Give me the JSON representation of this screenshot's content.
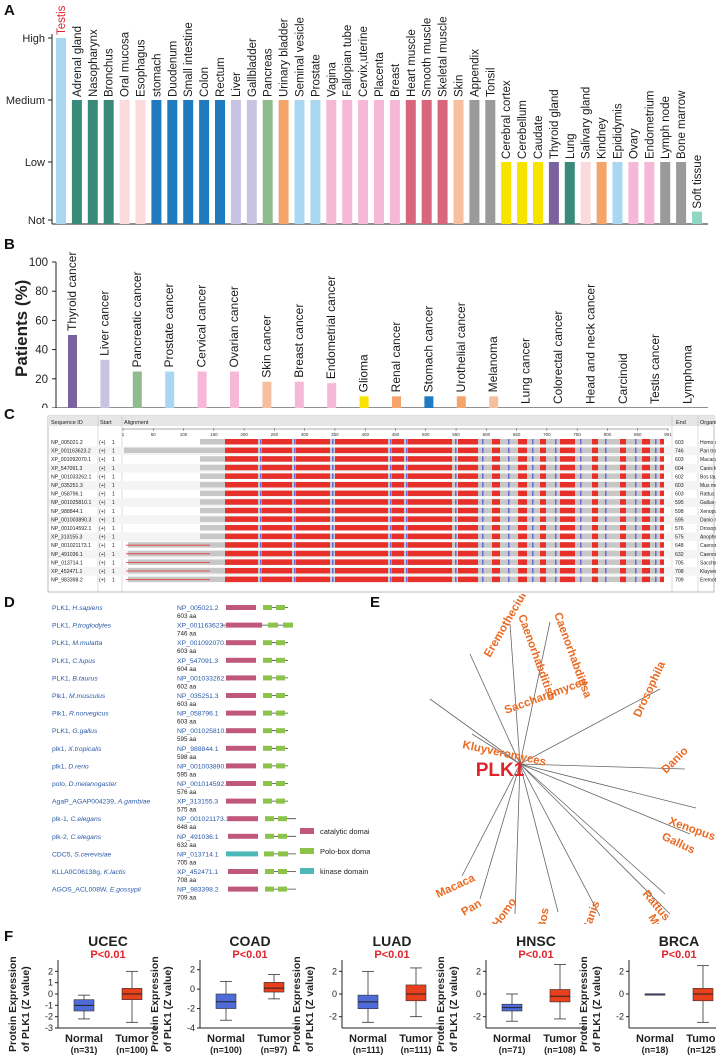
{
  "panels": {
    "a": "A",
    "b": "B",
    "c": "C",
    "d": "D",
    "e": "E",
    "f": "F"
  },
  "chart_data": [
    {
      "type": "bar",
      "title": "",
      "xlabel": "",
      "ylabel": "",
      "ytick_labels": [
        "High",
        "Medium",
        "Low",
        "Not"
      ],
      "ylim": [
        0,
        3
      ],
      "highlight": "Testis",
      "categories": [
        "Testis",
        "Adrenal gland",
        "Nasopharynx",
        "Bronchus",
        "Oral mucosa",
        "Esophagus",
        "stomach",
        "Duodenum",
        "Small intestine",
        "Colon",
        "Rectum",
        "Liver",
        "Gallbladder",
        "Pancreas",
        "Urinary bladder",
        "Seminal vesicle",
        "Prostate",
        "Vagina",
        "Fallopian tube",
        "Cervix,uterine",
        "Placenta",
        "Breast",
        "Heart muscle",
        "Smooth muscle",
        "Skeletal muscle",
        "Skin",
        "Appendix",
        "Tonsil",
        "Cerebral cortex",
        "Cerebellum",
        "Caudate",
        "Thyroid gland",
        "Lung",
        "Salivary gland",
        "Kindney",
        "Epididymis",
        "Ovary",
        "Endometrium",
        "Lymph node",
        "Bone marrow",
        "Soft tissue"
      ],
      "values": [
        3,
        2,
        2,
        2,
        2,
        2,
        2,
        2,
        2,
        2,
        2,
        2,
        2,
        2,
        2,
        2,
        2,
        2,
        2,
        2,
        2,
        2,
        2,
        2,
        2,
        2,
        2,
        2,
        1,
        1,
        1,
        1,
        1,
        1,
        1,
        1,
        1,
        1,
        1,
        1,
        0.2
      ],
      "colors": [
        "#a9d7f1",
        "#3a8a7c",
        "#3a8a7c",
        "#3a8a7c",
        "#fadadd",
        "#fadadd",
        "#1f7ac0",
        "#1f7ac0",
        "#1f7ac0",
        "#1f7ac0",
        "#1f7ac0",
        "#c9c3e3",
        "#c9c3e3",
        "#8fbc8f",
        "#f5a46a",
        "#a9d7f1",
        "#a9d7f1",
        "#f5b8d6",
        "#f5b8d6",
        "#f5b8d6",
        "#f5b8d6",
        "#f5b8d6",
        "#d8677b",
        "#d8677b",
        "#d8677b",
        "#f5bfa0",
        "#9a9a9a",
        "#9a9a9a",
        "#f7e200",
        "#f7e200",
        "#f7e200",
        "#7a629e",
        "#3a8a7c",
        "#fadadd",
        "#f5a46a",
        "#a9d7f1",
        "#f5b8d6",
        "#f5b8d6",
        "#9a9a9a",
        "#9a9a9a",
        "#8fd6c3"
      ]
    },
    {
      "type": "bar",
      "title": "",
      "xlabel": "",
      "ylabel": "Patients (%)",
      "ylim": [
        0,
        100
      ],
      "yticks": [
        "0",
        "20",
        "40",
        "60",
        "80",
        "100"
      ],
      "categories": [
        "Thyroid cancer",
        "Liver cancer",
        "Pancreatic cancer",
        "Prostate cancer",
        "Cervical cancer",
        "Ovarian cancer",
        "Skin cancer",
        "Breast cancer",
        "Endometrial cancer",
        "Glioma",
        "Renal cancer",
        "Stomach cancer",
        "Urothelial cancer",
        "Melanoma",
        "Lung cancer",
        "Colorectal cancer",
        "Head and neck cancer",
        "Carcinoid",
        "Testis cancer",
        "Lymphoma"
      ],
      "values": [
        50,
        33,
        25,
        25,
        25,
        25,
        18,
        18,
        17,
        8,
        8,
        8,
        8,
        8,
        0,
        0,
        0,
        0,
        0,
        0
      ],
      "colors": [
        "#7a629e",
        "#c9c3e3",
        "#8fbc8f",
        "#a9d7f1",
        "#f5b8d6",
        "#f5b8d6",
        "#f5bfa0",
        "#f5b8d6",
        "#f5b8d6",
        "#f7e200",
        "#f5a46a",
        "#1f7ac0",
        "#f5a46a",
        "#f5bfa0",
        "#9a9a9a",
        "#9a9a9a",
        "#9a9a9a",
        "#9a9a9a",
        "#9a9a9a",
        "#9a9a9a"
      ]
    },
    {
      "type": "box",
      "title": "UCEC",
      "pvalue": "P<0.01",
      "ylabel": "Protein Expression of PLK1 (Z value)",
      "yticks": [
        "2",
        "1",
        "0",
        "-1",
        "-2",
        "-3"
      ],
      "ylim": [
        -3,
        3
      ],
      "groups": [
        {
          "name": "Normal",
          "n": "(n=31)",
          "min": -2.2,
          "q1": -1.5,
          "median": -1.0,
          "q3": -0.5,
          "max": -0.1
        },
        {
          "name": "Tumor",
          "n": "(n=100)",
          "min": -2.5,
          "q1": -0.5,
          "median": 0.0,
          "q3": 0.5,
          "max": 2.0
        }
      ]
    },
    {
      "type": "box",
      "title": "COAD",
      "pvalue": "P<0.01",
      "ylabel": "Protein Expression of PLK1 (Z value)",
      "yticks": [
        "2",
        "0",
        "-2",
        "-4"
      ],
      "ylim": [
        -4,
        3
      ],
      "groups": [
        {
          "name": "Normal",
          "n": "(n=100)",
          "min": -3.2,
          "q1": -2.0,
          "median": -1.3,
          "q3": -0.5,
          "max": 0.8
        },
        {
          "name": "Tumor",
          "n": "(n=97)",
          "min": -1.0,
          "q1": -0.3,
          "median": 0.1,
          "q3": 0.7,
          "max": 1.5
        }
      ]
    },
    {
      "type": "box",
      "title": "LUAD",
      "pvalue": "P<0.01",
      "ylabel": "Protein Expression of PLK1 (Z value)",
      "yticks": [
        "2",
        "0",
        "-2"
      ],
      "ylim": [
        -3,
        3
      ],
      "groups": [
        {
          "name": "Normal",
          "n": "(n=111)",
          "min": -2.5,
          "q1": -1.3,
          "median": -0.7,
          "q3": -0.1,
          "max": 2.0
        },
        {
          "name": "Tumor",
          "n": "(n=111)",
          "min": -2.0,
          "q1": -0.6,
          "median": 0.0,
          "q3": 0.8,
          "max": 2.3
        }
      ]
    },
    {
      "type": "box",
      "title": "HNSC",
      "pvalue": "P<0.01",
      "ylabel": "Protein Expression of PLK1 (Z value)",
      "yticks": [
        "2",
        "0",
        "-2"
      ],
      "ylim": [
        -3,
        3
      ],
      "groups": [
        {
          "name": "Normal",
          "n": "(n=71)",
          "min": -2.4,
          "q1": -1.5,
          "median": -1.2,
          "q3": -0.9,
          "max": 0.0
        },
        {
          "name": "Tumor",
          "n": "(n=108)",
          "min": -2.2,
          "q1": -0.7,
          "median": -0.2,
          "q3": 0.4,
          "max": 2.6
        }
      ]
    },
    {
      "type": "box",
      "title": "BRCA",
      "pvalue": "P<0.01",
      "ylabel": "Protein Expression of PLK1 (Z value)",
      "yticks": [
        "2",
        "0",
        "-2"
      ],
      "ylim": [
        -3,
        3
      ],
      "groups": [
        {
          "name": "Normal",
          "n": "(n=18)",
          "min": 0.0,
          "q1": 0.0,
          "median": 0.0,
          "q3": 0.0,
          "max": 0.0
        },
        {
          "name": "Tumor",
          "n": "(n=125)",
          "min": -2.5,
          "q1": -0.6,
          "median": 0.0,
          "q3": 0.5,
          "max": 2.5
        }
      ]
    }
  ],
  "alignment": {
    "headers": {
      "id": "Sequence ID",
      "start": "Start",
      "alignment": "Alignment",
      "end": "End",
      "organism": "Organism"
    },
    "ruler": [
      "1",
      "50",
      "100",
      "150",
      "200",
      "250",
      "300",
      "350",
      "400",
      "450",
      "500",
      "550",
      "600",
      "650",
      "700",
      "750",
      "800",
      "850",
      "901"
    ],
    "rows": [
      {
        "id": "NP_005021.2",
        "strand": "(+)",
        "start": "1",
        "end": "603",
        "organism": "Homo sapiens"
      },
      {
        "id": "XP_001163623.2",
        "strand": "(+)",
        "start": "1",
        "end": "746",
        "organism": "Pan troglodytes"
      },
      {
        "id": "XP_001092070.1",
        "strand": "(+)",
        "start": "1",
        "end": "603",
        "organism": "Macaca mulatta"
      },
      {
        "id": "XP_547091.3",
        "strand": "(+)",
        "start": "1",
        "end": "604",
        "organism": "Canis lupus familiaris"
      },
      {
        "id": "NP_001033262.1",
        "strand": "(+)",
        "start": "1",
        "end": "602",
        "organism": "Bos taurus"
      },
      {
        "id": "NP_035251.3",
        "strand": "(+)",
        "start": "1",
        "end": "603",
        "organism": "Mus musculus"
      },
      {
        "id": "NP_058796.1",
        "strand": "(+)",
        "start": "1",
        "end": "603",
        "organism": "Rattus norvegicus"
      },
      {
        "id": "NP_001025810.1",
        "strand": "(+)",
        "start": "1",
        "end": "595",
        "organism": "Gallus gallus"
      },
      {
        "id": "NP_988844.1",
        "strand": "(+)",
        "start": "1",
        "end": "598",
        "organism": "Xenopus tropicalis"
      },
      {
        "id": "NP_001003890.3",
        "strand": "(+)",
        "start": "1",
        "end": "595",
        "organism": "Danio rerio"
      },
      {
        "id": "NP_001014592.1",
        "strand": "(+)",
        "start": "1",
        "end": "576",
        "organism": "Drosophila melanogaster"
      },
      {
        "id": "XP_313155.3",
        "strand": "(+)",
        "start": "1",
        "end": "575",
        "organism": "Anopheles gambiae str..."
      },
      {
        "id": "NP_001021173.1",
        "strand": "(+)",
        "start": "1",
        "end": "648",
        "organism": "Caenorhabditis elegans"
      },
      {
        "id": "NP_491036.1",
        "strand": "(+)",
        "start": "1",
        "end": "632",
        "organism": "Caenorhabditis elegans"
      },
      {
        "id": "NP_013714.1",
        "strand": "(+)",
        "start": "1",
        "end": "705",
        "organism": "Saccharomyces cerevisi..."
      },
      {
        "id": "XP_452471.1",
        "strand": "(+)",
        "start": "1",
        "end": "708",
        "organism": "Kluyveromyces lactis"
      },
      {
        "id": "NP_983398.2",
        "strand": "(+)",
        "start": "1",
        "end": "709",
        "organism": "Eremothecium gossypi..."
      }
    ]
  },
  "domains": {
    "legend": [
      {
        "label": "catalytic domain",
        "color": "#c0587c"
      },
      {
        "label": "Polo-box domain",
        "color": "#8cc34a"
      },
      {
        "label": "kinase domain",
        "color": "#4db8b8"
      }
    ],
    "rows": [
      {
        "gene": "PLK1,",
        "species": "H.sapiens",
        "acc": "NP_005021.2",
        "aa": "603 aa",
        "type": "plk"
      },
      {
        "gene": "PLK1,",
        "species": "P.troglodytes",
        "acc": "XP_001163623.2",
        "aa": "746 aa",
        "type": "ptr"
      },
      {
        "gene": "PLK1,",
        "species": "M.mulatta",
        "acc": "XP_001092070.1",
        "aa": "603 aa",
        "type": "plk"
      },
      {
        "gene": "PLK1,",
        "species": "C.lupus",
        "acc": "XP_547091.3",
        "aa": "604 aa",
        "type": "plk"
      },
      {
        "gene": "PLK1,",
        "species": "B.taurus",
        "acc": "NP_001033262.1",
        "aa": "602 aa",
        "type": "plk"
      },
      {
        "gene": "Plk1,",
        "species": "M.musculus",
        "acc": "NP_035251.3",
        "aa": "603 aa",
        "type": "plk"
      },
      {
        "gene": "Plk1,",
        "species": "R.norvegicus",
        "acc": "NP_058796.1",
        "aa": "603 aa",
        "type": "plk"
      },
      {
        "gene": "PLK1,",
        "species": "G.gallus",
        "acc": "NP_001025810.1",
        "aa": "595 aa",
        "type": "plk"
      },
      {
        "gene": "plk1,",
        "species": "X.tropicalis",
        "acc": "NP_988844.1",
        "aa": "598 aa",
        "type": "plk"
      },
      {
        "gene": "plk1,",
        "species": "D.rerio",
        "acc": "NP_001003890.3",
        "aa": "595 aa",
        "type": "plk"
      },
      {
        "gene": "polo,",
        "species": "D.melanogaster",
        "acc": "NP_001014592.1",
        "aa": "576 aa",
        "type": "plk"
      },
      {
        "gene": "AgaP_AGAP004239,",
        "species": "A.gambiae",
        "acc": "XP_313155.3",
        "aa": "575 aa",
        "type": "plk"
      },
      {
        "gene": "plk-1,",
        "species": "C.elegans",
        "acc": "NP_001021173.1",
        "aa": "648 aa",
        "type": "long"
      },
      {
        "gene": "plk-2,",
        "species": "C.elegans",
        "acc": "NP_491036.1",
        "aa": "632 aa",
        "type": "long"
      },
      {
        "gene": "CDC5,",
        "species": "S.cerevisiae",
        "acc": "NP_013714.1",
        "aa": "705 aa",
        "type": "kin"
      },
      {
        "gene": "KLLA0C06138g,",
        "species": "K.lactis",
        "acc": "XP_452471.1",
        "aa": "708 aa",
        "type": "long"
      },
      {
        "gene": "AGOS_ACL008W,",
        "species": "E.gossypii",
        "acc": "NP_983398.2",
        "aa": "709 aa",
        "type": "long"
      }
    ]
  },
  "tree": {
    "center": "PLK1",
    "leaves": [
      "Eremothecium",
      "Caenorhabditisb",
      "Caenorhabditisa",
      "Drosophila",
      "Saccharomyces",
      "Danio",
      "Kluyveromyces",
      "Xenopus",
      "Gallus",
      "Macaca",
      "Pan",
      "Rattus",
      "Homo",
      "Mus",
      "Bos",
      "Canis"
    ]
  }
}
